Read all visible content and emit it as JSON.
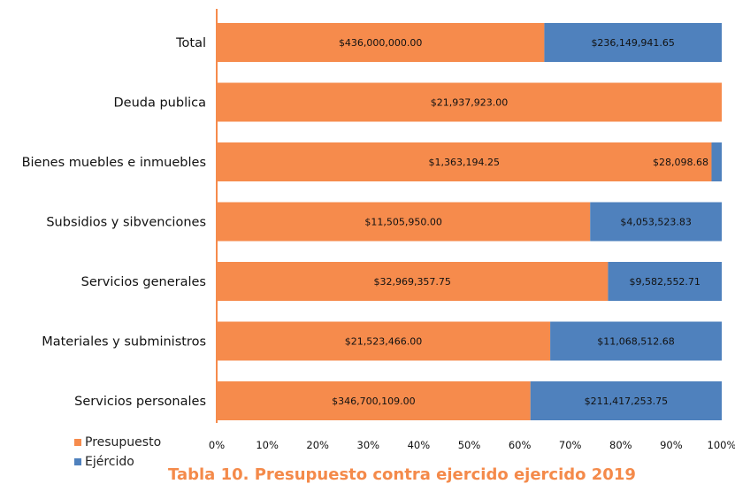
{
  "chart_data": {
    "type": "bar",
    "orientation": "horizontal",
    "stacking": "percent",
    "categories": [
      "Total",
      "Deuda publica",
      "Bienes muebles e inmuebles",
      "Subsidios y sibvenciones",
      "Servicios generales",
      "Materiales y subministros",
      "Servicios personales"
    ],
    "series": [
      {
        "name": "Presupuesto",
        "color": "#f68b4c",
        "values": [
          436000000.0,
          21937923.0,
          1363194.25,
          11505950.0,
          32969357.75,
          21523466.0,
          346700109.0
        ],
        "labels": [
          "$436,000,000.00",
          "$21,937,923.00",
          "$1,363,194.25",
          "$11,505,950.00",
          "$32,969,357.75",
          "$21,523,466.00",
          "$346,700,109.00"
        ]
      },
      {
        "name": "Ejércido",
        "color": "#4f81bd",
        "values": [
          236149941.65,
          0,
          28098.68,
          4053523.83,
          9582552.71,
          11068512.68,
          211417253.75
        ],
        "labels": [
          "$236,149,941.65",
          "",
          "$28,098.68",
          "$4,053,523.83",
          "$9,582,552.71",
          "$11,068,512.68",
          "$211,417,253.75"
        ]
      }
    ],
    "xticks": [
      "0%",
      "10%",
      "20%",
      "30%",
      "40%",
      "50%",
      "60%",
      "70%",
      "80%",
      "90%",
      "100%"
    ],
    "xlim": [
      0,
      100
    ],
    "grid": false,
    "legend": "bottom-left"
  },
  "caption": "Tabla 10. Presupuesto contra ejercido ejercido 2019"
}
